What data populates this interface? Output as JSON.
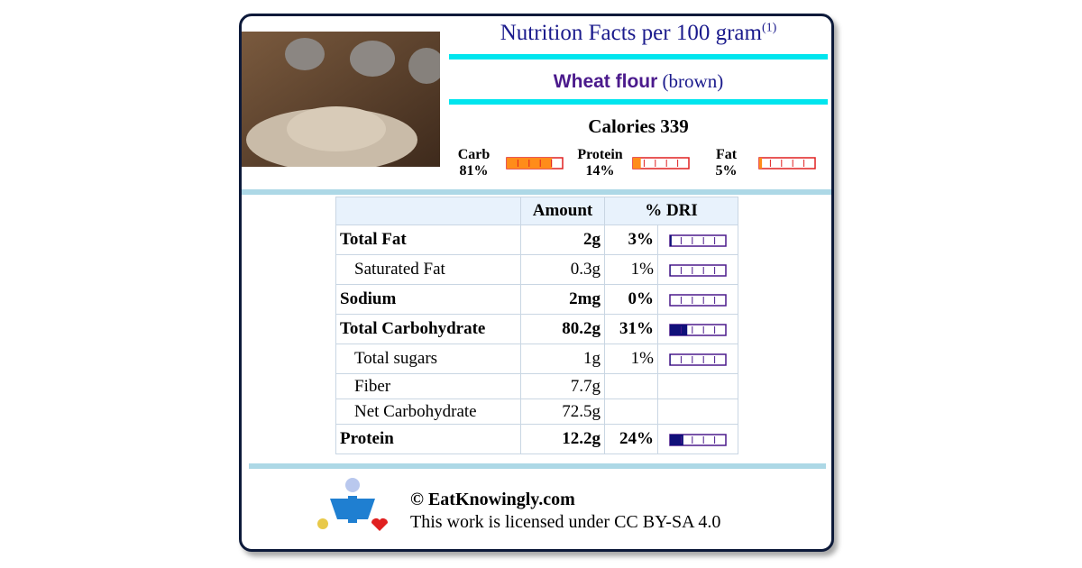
{
  "header": {
    "title": "Nutrition Facts per 100 gram",
    "footnote": "(1)",
    "food": "Wheat flour",
    "variant": "(brown)"
  },
  "calories": {
    "label": "Calories",
    "value": 339
  },
  "macros": [
    {
      "name": "Carb",
      "value": 81,
      "label": "81%"
    },
    {
      "name": "Protein",
      "value": 14,
      "label": "14%"
    },
    {
      "name": "Fat",
      "value": 5,
      "label": "5%"
    }
  ],
  "table": {
    "columns": [
      "Amount",
      "% DRI"
    ],
    "rows": [
      {
        "name": "Total Fat",
        "amount": "2g",
        "dri": {
          "value": 3,
          "label": "3%"
        },
        "bold": true
      },
      {
        "name": "Saturated Fat",
        "amount": "0.3g",
        "dri": {
          "value": 1,
          "label": "1%"
        },
        "bold": false
      },
      {
        "name": "Sodium",
        "amount": "2mg",
        "dri": {
          "value": 0,
          "label": "0%"
        },
        "bold": true
      },
      {
        "name": "Total Carbohydrate",
        "amount": "80.2g",
        "dri": {
          "value": 31,
          "label": "31%"
        },
        "bold": true
      },
      {
        "name": "Total sugars",
        "amount": "1g",
        "dri": {
          "value": 1,
          "label": "1%"
        },
        "bold": false
      },
      {
        "name": "Fiber",
        "amount": "7.7g",
        "bold": false
      },
      {
        "name": "Net Carbohydrate",
        "amount": "72.5g",
        "bold": false
      },
      {
        "name": "Protein",
        "amount": "12.2g",
        "dri": {
          "value": 24,
          "label": "24%"
        },
        "bold": true
      }
    ]
  },
  "footer": {
    "site": "© EatKnowingly.com",
    "license": "This work is licensed under CC BY-SA 4.0"
  }
}
